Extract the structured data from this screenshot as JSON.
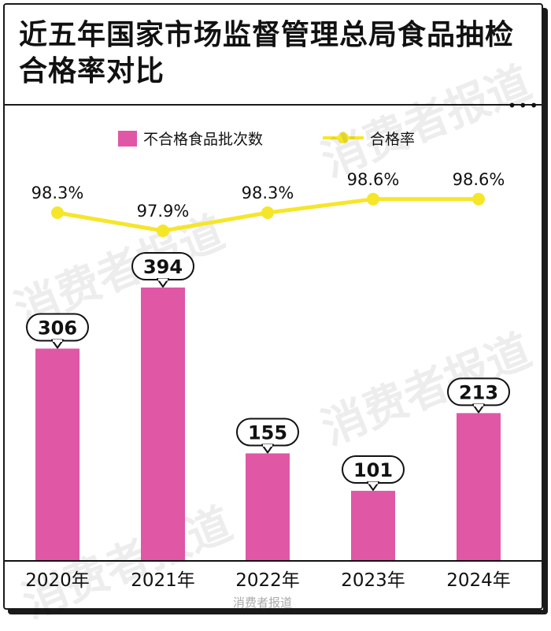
{
  "title": "近五年国家市场监督管理总局食品抽检合格率对比",
  "watermark": "消费者报道",
  "footer": "消费者报道",
  "colors": {
    "bar": "#e057a6",
    "line": "#f5e62a",
    "text": "#111111",
    "border": "#1a1a1a"
  },
  "chart_data": {
    "type": "bar",
    "categories": [
      "2020年",
      "2021年",
      "2022年",
      "2023年",
      "2024年"
    ],
    "series": [
      {
        "name": "不合格食品批次数",
        "type": "bar",
        "values": [
          306,
          394,
          155,
          101,
          213
        ],
        "labels": [
          "306",
          "394",
          "155",
          "101",
          "213"
        ]
      },
      {
        "name": "合格率",
        "type": "line",
        "values": [
          98.3,
          97.9,
          98.3,
          98.6,
          98.6
        ],
        "labels": [
          "98.3%",
          "97.9%",
          "98.3%",
          "98.6%",
          "98.6%"
        ]
      }
    ],
    "legend": "top-center",
    "grid": false
  }
}
